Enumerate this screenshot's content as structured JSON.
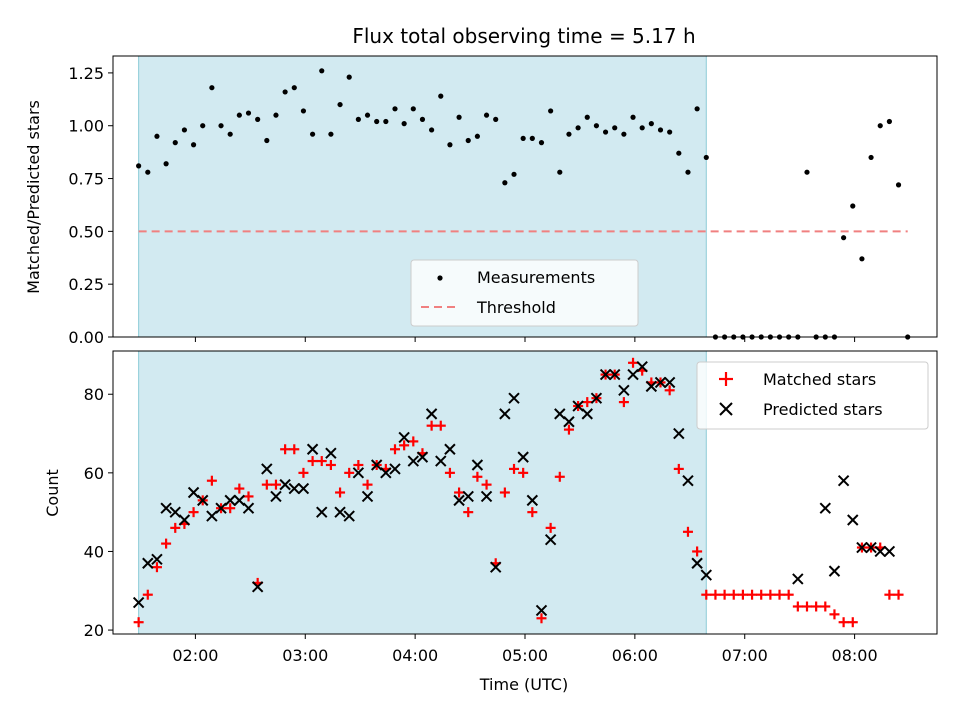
{
  "chart_data": [
    {
      "type": "scatter",
      "title": "Flux total observing time = 5.17 h",
      "ylabel": "Matched/Predicted stars",
      "xlabel": "",
      "xlim": [
        "01:15",
        "08:45"
      ],
      "ylim": [
        0,
        1.33
      ],
      "x_ticks": [
        "02:00",
        "03:00",
        "04:00",
        "05:00",
        "06:00",
        "07:00",
        "08:00"
      ],
      "y_ticks": [
        "0.00",
        "0.25",
        "0.50",
        "0.75",
        "1.00",
        "1.25"
      ],
      "shaded_span": [
        "01:29",
        "06:39"
      ],
      "threshold": 0.5,
      "legend": {
        "position": "lower-center",
        "entries": [
          "Measurements",
          "Threshold"
        ]
      },
      "grid": false,
      "series": [
        {
          "name": "Measurements",
          "color": "#000000",
          "points": [
            [
              "01:29",
              0.81
            ],
            [
              "01:34",
              0.78
            ],
            [
              "01:39",
              0.95
            ],
            [
              "01:44",
              0.82
            ],
            [
              "01:49",
              0.92
            ],
            [
              "01:54",
              0.98
            ],
            [
              "01:59",
              0.91
            ],
            [
              "02:04",
              1.0
            ],
            [
              "02:09",
              1.18
            ],
            [
              "02:14",
              1.0
            ],
            [
              "02:19",
              0.96
            ],
            [
              "02:24",
              1.05
            ],
            [
              "02:29",
              1.06
            ],
            [
              "02:34",
              1.03
            ],
            [
              "02:39",
              0.93
            ],
            [
              "02:44",
              1.05
            ],
            [
              "02:49",
              1.16
            ],
            [
              "02:54",
              1.18
            ],
            [
              "02:59",
              1.07
            ],
            [
              "03:04",
              0.96
            ],
            [
              "03:09",
              1.26
            ],
            [
              "03:14",
              0.96
            ],
            [
              "03:19",
              1.1
            ],
            [
              "03:24",
              1.23
            ],
            [
              "03:29",
              1.03
            ],
            [
              "03:34",
              1.05
            ],
            [
              "03:39",
              1.02
            ],
            [
              "03:44",
              1.02
            ],
            [
              "03:49",
              1.08
            ],
            [
              "03:54",
              1.01
            ],
            [
              "03:59",
              1.08
            ],
            [
              "04:04",
              1.03
            ],
            [
              "04:09",
              0.98
            ],
            [
              "04:14",
              1.14
            ],
            [
              "04:19",
              0.91
            ],
            [
              "04:24",
              1.04
            ],
            [
              "04:29",
              0.93
            ],
            [
              "04:34",
              0.95
            ],
            [
              "04:39",
              1.05
            ],
            [
              "04:44",
              1.03
            ],
            [
              "04:49",
              0.73
            ],
            [
              "04:54",
              0.77
            ],
            [
              "04:59",
              0.94
            ],
            [
              "05:04",
              0.94
            ],
            [
              "05:09",
              0.92
            ],
            [
              "05:14",
              1.07
            ],
            [
              "05:19",
              0.78
            ],
            [
              "05:24",
              0.96
            ],
            [
              "05:29",
              0.99
            ],
            [
              "05:34",
              1.04
            ],
            [
              "05:39",
              1.0
            ],
            [
              "05:44",
              0.97
            ],
            [
              "05:49",
              0.99
            ],
            [
              "05:54",
              0.96
            ],
            [
              "05:59",
              1.04
            ],
            [
              "06:04",
              0.99
            ],
            [
              "06:09",
              1.01
            ],
            [
              "06:14",
              0.98
            ],
            [
              "06:19",
              0.97
            ],
            [
              "06:24",
              0.87
            ],
            [
              "06:29",
              0.78
            ],
            [
              "06:34",
              1.08
            ],
            [
              "06:39",
              0.85
            ],
            [
              "06:44",
              0.0
            ],
            [
              "06:49",
              0.0
            ],
            [
              "06:54",
              0.0
            ],
            [
              "06:59",
              0.0
            ],
            [
              "07:04",
              0.0
            ],
            [
              "07:09",
              0.0
            ],
            [
              "07:14",
              0.0
            ],
            [
              "07:19",
              0.0
            ],
            [
              "07:24",
              0.0
            ],
            [
              "07:29",
              0.0
            ],
            [
              "07:34",
              0.78
            ],
            [
              "07:39",
              0.0
            ],
            [
              "07:44",
              0.0
            ],
            [
              "07:49",
              0.0
            ],
            [
              "07:54",
              0.47
            ],
            [
              "07:59",
              0.62
            ],
            [
              "08:04",
              0.37
            ],
            [
              "08:09",
              0.85
            ],
            [
              "08:14",
              1.0
            ],
            [
              "08:19",
              1.02
            ],
            [
              "08:24",
              0.72
            ],
            [
              "08:29",
              0.0
            ]
          ]
        }
      ]
    },
    {
      "type": "scatter",
      "title": "",
      "ylabel": "Count",
      "xlabel": "Time (UTC)",
      "xlim": [
        "01:15",
        "08:45"
      ],
      "ylim": [
        19,
        91
      ],
      "x_ticks": [
        "02:00",
        "03:00",
        "04:00",
        "05:00",
        "06:00",
        "07:00",
        "08:00"
      ],
      "y_ticks": [
        "20",
        "40",
        "60",
        "80"
      ],
      "shaded_span": [
        "01:29",
        "06:39"
      ],
      "legend": {
        "position": "top-right",
        "entries": [
          "Matched stars",
          "Predicted stars"
        ]
      },
      "grid": false,
      "series": [
        {
          "name": "Matched stars",
          "color": "#ff0000",
          "marker": "plus",
          "points": [
            [
              "01:29",
              22
            ],
            [
              "01:34",
              29
            ],
            [
              "01:39",
              36
            ],
            [
              "01:44",
              42
            ],
            [
              "01:49",
              46
            ],
            [
              "01:54",
              47
            ],
            [
              "01:59",
              50
            ],
            [
              "02:04",
              53
            ],
            [
              "02:09",
              58
            ],
            [
              "02:14",
              51
            ],
            [
              "02:19",
              51
            ],
            [
              "02:24",
              56
            ],
            [
              "02:29",
              54
            ],
            [
              "02:34",
              32
            ],
            [
              "02:39",
              57
            ],
            [
              "02:44",
              57
            ],
            [
              "02:49",
              66
            ],
            [
              "02:54",
              66
            ],
            [
              "02:59",
              60
            ],
            [
              "03:04",
              63
            ],
            [
              "03:09",
              63
            ],
            [
              "03:14",
              62
            ],
            [
              "03:19",
              55
            ],
            [
              "03:24",
              60
            ],
            [
              "03:29",
              62
            ],
            [
              "03:34",
              57
            ],
            [
              "03:39",
              62
            ],
            [
              "03:44",
              61
            ],
            [
              "03:49",
              66
            ],
            [
              "03:54",
              67
            ],
            [
              "03:59",
              68
            ],
            [
              "04:04",
              65
            ],
            [
              "04:09",
              72
            ],
            [
              "04:14",
              72
            ],
            [
              "04:19",
              60
            ],
            [
              "04:24",
              55
            ],
            [
              "04:29",
              50
            ],
            [
              "04:34",
              59
            ],
            [
              "04:39",
              57
            ],
            [
              "04:44",
              37
            ],
            [
              "04:49",
              55
            ],
            [
              "04:54",
              61
            ],
            [
              "04:59",
              60
            ],
            [
              "05:04",
              50
            ],
            [
              "05:09",
              23
            ],
            [
              "05:14",
              46
            ],
            [
              "05:19",
              59
            ],
            [
              "05:24",
              71
            ],
            [
              "05:29",
              77
            ],
            [
              "05:34",
              78
            ],
            [
              "05:39",
              79
            ],
            [
              "05:44",
              85
            ],
            [
              "05:49",
              85
            ],
            [
              "05:54",
              78
            ],
            [
              "05:59",
              88
            ],
            [
              "06:04",
              86
            ],
            [
              "06:09",
              83
            ],
            [
              "06:14",
              83
            ],
            [
              "06:19",
              81
            ],
            [
              "06:24",
              61
            ],
            [
              "06:29",
              45
            ],
            [
              "06:34",
              40
            ],
            [
              "06:39",
              29
            ],
            [
              "06:44",
              29
            ],
            [
              "06:49",
              29
            ],
            [
              "06:54",
              29
            ],
            [
              "06:59",
              29
            ],
            [
              "07:04",
              29
            ],
            [
              "07:09",
              29
            ],
            [
              "07:14",
              29
            ],
            [
              "07:19",
              29
            ],
            [
              "07:24",
              29
            ],
            [
              "07:29",
              26
            ],
            [
              "07:34",
              26
            ],
            [
              "07:39",
              26
            ],
            [
              "07:44",
              26
            ],
            [
              "07:49",
              24
            ],
            [
              "07:54",
              22
            ],
            [
              "07:59",
              22
            ],
            [
              "08:04",
              41
            ],
            [
              "08:09",
              41
            ],
            [
              "08:14",
              41
            ],
            [
              "08:19",
              29
            ],
            [
              "08:24",
              29
            ]
          ]
        },
        {
          "name": "Predicted stars",
          "color": "#000000",
          "marker": "x",
          "points": [
            [
              "01:29",
              27
            ],
            [
              "01:34",
              37
            ],
            [
              "01:39",
              38
            ],
            [
              "01:44",
              51
            ],
            [
              "01:49",
              50
            ],
            [
              "01:54",
              48
            ],
            [
              "01:59",
              55
            ],
            [
              "02:04",
              53
            ],
            [
              "02:09",
              49
            ],
            [
              "02:14",
              51
            ],
            [
              "02:19",
              53
            ],
            [
              "02:24",
              53
            ],
            [
              "02:29",
              51
            ],
            [
              "02:34",
              31
            ],
            [
              "02:39",
              61
            ],
            [
              "02:44",
              54
            ],
            [
              "02:49",
              57
            ],
            [
              "02:54",
              56
            ],
            [
              "02:59",
              56
            ],
            [
              "03:04",
              66
            ],
            [
              "03:09",
              50
            ],
            [
              "03:14",
              65
            ],
            [
              "03:19",
              50
            ],
            [
              "03:24",
              49
            ],
            [
              "03:29",
              60
            ],
            [
              "03:34",
              54
            ],
            [
              "03:39",
              62
            ],
            [
              "03:44",
              60
            ],
            [
              "03:49",
              61
            ],
            [
              "03:54",
              69
            ],
            [
              "03:59",
              63
            ],
            [
              "04:04",
              64
            ],
            [
              "04:09",
              75
            ],
            [
              "04:14",
              63
            ],
            [
              "04:19",
              66
            ],
            [
              "04:24",
              53
            ],
            [
              "04:29",
              54
            ],
            [
              "04:34",
              62
            ],
            [
              "04:39",
              54
            ],
            [
              "04:44",
              36
            ],
            [
              "04:49",
              75
            ],
            [
              "04:54",
              79
            ],
            [
              "04:59",
              64
            ],
            [
              "05:04",
              53
            ],
            [
              "05:09",
              25
            ],
            [
              "05:14",
              43
            ],
            [
              "05:19",
              75
            ],
            [
              "05:24",
              73
            ],
            [
              "05:29",
              77
            ],
            [
              "05:34",
              75
            ],
            [
              "05:39",
              79
            ],
            [
              "05:44",
              85
            ],
            [
              "05:49",
              85
            ],
            [
              "05:54",
              81
            ],
            [
              "05:59",
              85
            ],
            [
              "06:04",
              87
            ],
            [
              "06:09",
              82
            ],
            [
              "06:14",
              83
            ],
            [
              "06:19",
              83
            ],
            [
              "06:24",
              70
            ],
            [
              "06:29",
              58
            ],
            [
              "06:34",
              37
            ],
            [
              "06:39",
              34
            ],
            [
              "07:29",
              33
            ],
            [
              "07:44",
              51
            ],
            [
              "07:49",
              35
            ],
            [
              "07:54",
              58
            ],
            [
              "07:59",
              48
            ],
            [
              "08:04",
              41
            ],
            [
              "08:09",
              41
            ],
            [
              "08:14",
              40
            ],
            [
              "08:19",
              40
            ]
          ]
        }
      ]
    }
  ],
  "colors": {
    "shade": "#add8e6",
    "threshold": "#f08080",
    "matched": "#ff0000",
    "predicted": "#000000",
    "measurement": "#000000"
  }
}
